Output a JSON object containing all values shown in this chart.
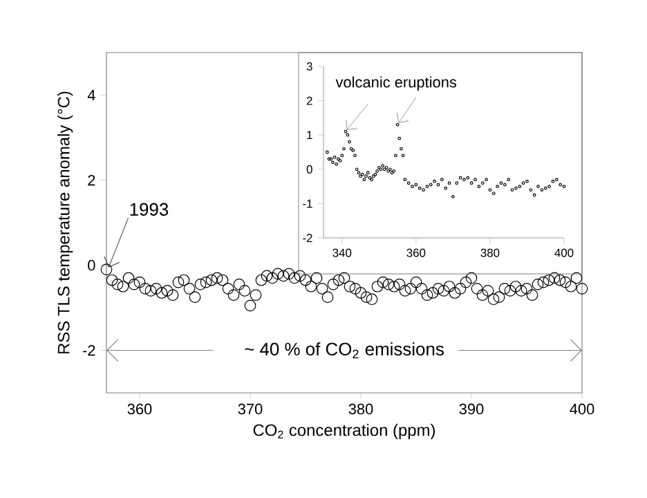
{
  "chart_data": [
    {
      "type": "scatter",
      "xlabel": "CO$_{2}$ concentration (ppm)",
      "ylabel": "RSS TLS temperature anomaly (°C)",
      "xlim": [
        357,
        400
      ],
      "ylim": [
        -3,
        5
      ],
      "xticks": [
        360,
        370,
        380,
        390,
        400
      ],
      "yticks": [
        -2,
        0,
        2,
        4
      ],
      "marker": "circle",
      "annotations": [
        {
          "text": "1993",
          "x": 357,
          "y": -0.1
        },
        "~ 40 % of CO$_{2}$ emissions"
      ],
      "series": [
        {
          "color": "#000000",
          "x": [
            357.0,
            357.5,
            358,
            358.5,
            359,
            359.5,
            360,
            360.5,
            361,
            361.5,
            362,
            362.5,
            363,
            363.5,
            364,
            364.5,
            365,
            365.5,
            366,
            366.5,
            367,
            367.5,
            368,
            368.5,
            369,
            369.5,
            370,
            370.5,
            371,
            371.5,
            372,
            372.5,
            373,
            373.5,
            374,
            374.5,
            375,
            375.5,
            376,
            376.5,
            377,
            377.5,
            378,
            378.5,
            379,
            379.5,
            380,
            380.5,
            381,
            381.5,
            382,
            382.5,
            383,
            383.5,
            384,
            384.5,
            385,
            385.5,
            386,
            386.5,
            387,
            387.5,
            388,
            388.5,
            389,
            389.5,
            390,
            390.5,
            391,
            391.5,
            392,
            392.5,
            393,
            393.5,
            394,
            394.5,
            395,
            395.5,
            396,
            396.5,
            397,
            397.5,
            398,
            398.5,
            399,
            399.5,
            400
          ],
          "values": [
            -0.1,
            -0.35,
            -0.45,
            -0.5,
            -0.3,
            -0.45,
            -0.4,
            -0.55,
            -0.6,
            -0.55,
            -0.65,
            -0.6,
            -0.7,
            -0.4,
            -0.35,
            -0.55,
            -0.75,
            -0.45,
            -0.4,
            -0.35,
            -0.3,
            -0.35,
            -0.55,
            -0.7,
            -0.45,
            -0.6,
            -0.95,
            -0.7,
            -0.35,
            -0.25,
            -0.3,
            -0.2,
            -0.25,
            -0.2,
            -0.3,
            -0.25,
            -0.35,
            -0.5,
            -0.3,
            -0.55,
            -0.75,
            -0.45,
            -0.35,
            -0.3,
            -0.5,
            -0.55,
            -0.65,
            -0.75,
            -0.8,
            -0.5,
            -0.4,
            -0.45,
            -0.5,
            -0.45,
            -0.6,
            -0.55,
            -0.4,
            -0.55,
            -0.7,
            -0.65,
            -0.55,
            -0.6,
            -0.5,
            -0.65,
            -0.55,
            -0.4,
            -0.3,
            -0.55,
            -0.7,
            -0.6,
            -0.8,
            -0.75,
            -0.55,
            -0.6,
            -0.5,
            -0.6,
            -0.55,
            -0.7,
            -0.45,
            -0.4,
            -0.35,
            -0.3,
            -0.35,
            -0.4,
            -0.5,
            -0.3,
            -0.55
          ]
        }
      ]
    },
    {
      "type": "scatter",
      "xlim": [
        335,
        400
      ],
      "ylim": [
        -2,
        3
      ],
      "xticks": [
        340,
        360,
        380,
        400
      ],
      "yticks": [
        -2,
        -1,
        0,
        1,
        2,
        3
      ],
      "marker": "circle",
      "annotations": [
        "volcanic eruptions"
      ],
      "series": [
        {
          "color": "#000000",
          "x": [
            336,
            336.5,
            337,
            337.5,
            338,
            338.5,
            339,
            339.5,
            340,
            340.5,
            341,
            341.5,
            342,
            342.5,
            343,
            343.5,
            344,
            344.5,
            345,
            345.5,
            346,
            346.5,
            347,
            347.5,
            348,
            348.5,
            349,
            349.5,
            350,
            350.5,
            351,
            351.5,
            352,
            352.5,
            353,
            353.5,
            354,
            354.5,
            355,
            355.5,
            356,
            356.5,
            357,
            358,
            359,
            360,
            361,
            362,
            363,
            364,
            365,
            366,
            367,
            368,
            369,
            370,
            371,
            372,
            373,
            374,
            375,
            376,
            377,
            378,
            379,
            380,
            381,
            382,
            383,
            384,
            385,
            386,
            387,
            388,
            389,
            390,
            391,
            392,
            393,
            394,
            395,
            396,
            397,
            398,
            399,
            400
          ],
          "values": [
            0.5,
            0.3,
            0.3,
            0.2,
            0.35,
            0.15,
            0.3,
            0.25,
            0.4,
            0.6,
            1.1,
            1.0,
            0.8,
            0.6,
            0.55,
            0.4,
            0.0,
            -0.1,
            -0.2,
            -0.15,
            -0.3,
            -0.2,
            -0.1,
            -0.25,
            -0.3,
            -0.2,
            -0.15,
            -0.05,
            0.05,
            0.0,
            0.1,
            0.0,
            0.05,
            -0.05,
            0.0,
            -0.1,
            -0.05,
            0.4,
            1.3,
            0.9,
            0.6,
            0.4,
            -0.3,
            -0.4,
            -0.5,
            -0.45,
            -0.55,
            -0.6,
            -0.5,
            -0.45,
            -0.35,
            -0.45,
            -0.3,
            -0.55,
            -0.4,
            -0.8,
            -0.4,
            -0.25,
            -0.3,
            -0.25,
            -0.4,
            -0.3,
            -0.5,
            -0.4,
            -0.3,
            -0.6,
            -0.7,
            -0.5,
            -0.4,
            -0.45,
            -0.3,
            -0.6,
            -0.55,
            -0.5,
            -0.4,
            -0.35,
            -0.6,
            -0.75,
            -0.5,
            -0.6,
            -0.55,
            -0.5,
            -0.35,
            -0.3,
            -0.45,
            -0.5
          ]
        }
      ]
    }
  ]
}
